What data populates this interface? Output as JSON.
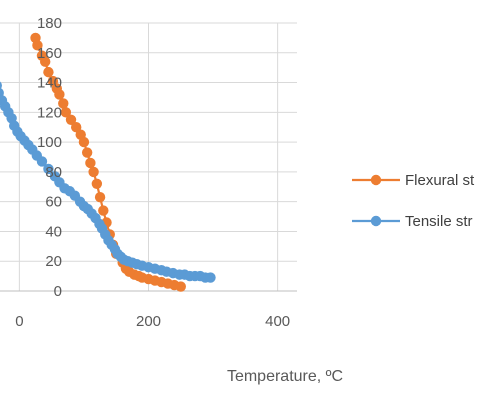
{
  "chart_data": {
    "type": "scatter",
    "xlabel": "Temperature, ºC",
    "ylabel": "",
    "xlim": [
      -30,
      430
    ],
    "ylim": [
      0,
      180
    ],
    "x_ticks": [
      0,
      200,
      400
    ],
    "y_ticks": [
      0,
      20,
      40,
      60,
      80,
      100,
      120,
      140,
      160,
      180
    ],
    "grid": true,
    "legend_position": "right",
    "series": [
      {
        "name": "Flexural st",
        "color": "#ED7D31",
        "points": [
          [
            25,
            170
          ],
          [
            28,
            165
          ],
          [
            35,
            158
          ],
          [
            40,
            154
          ],
          [
            45,
            147
          ],
          [
            52,
            141
          ],
          [
            58,
            136
          ],
          [
            62,
            132
          ],
          [
            68,
            126
          ],
          [
            72,
            120
          ],
          [
            80,
            115
          ],
          [
            88,
            110
          ],
          [
            95,
            105
          ],
          [
            100,
            100
          ],
          [
            105,
            93
          ],
          [
            110,
            86
          ],
          [
            115,
            80
          ],
          [
            120,
            72
          ],
          [
            125,
            63
          ],
          [
            130,
            54
          ],
          [
            135,
            46
          ],
          [
            140,
            38
          ],
          [
            145,
            31
          ],
          [
            150,
            25
          ],
          [
            160,
            19
          ],
          [
            165,
            15
          ],
          [
            170,
            13
          ],
          [
            178,
            11
          ],
          [
            185,
            10
          ],
          [
            190,
            9
          ],
          [
            200,
            8
          ],
          [
            210,
            7
          ],
          [
            220,
            6
          ],
          [
            230,
            5
          ],
          [
            240,
            4
          ],
          [
            250,
            3
          ]
        ]
      },
      {
        "name": "Tensile str",
        "color": "#5B9BD5",
        "points": [
          [
            -40,
            143
          ],
          [
            -35,
            138
          ],
          [
            -32,
            133
          ],
          [
            -27,
            128
          ],
          [
            -22,
            124
          ],
          [
            -17,
            120
          ],
          [
            -12,
            116
          ],
          [
            -8,
            111
          ],
          [
            -3,
            107
          ],
          [
            2,
            104
          ],
          [
            8,
            101
          ],
          [
            14,
            98
          ],
          [
            20,
            95
          ],
          [
            27,
            91
          ],
          [
            35,
            87
          ],
          [
            45,
            82
          ],
          [
            55,
            77
          ],
          [
            62,
            73
          ],
          [
            70,
            69
          ],
          [
            78,
            67
          ],
          [
            86,
            64
          ],
          [
            94,
            60
          ],
          [
            100,
            57
          ],
          [
            106,
            55
          ],
          [
            112,
            52
          ],
          [
            118,
            49
          ],
          [
            124,
            45
          ],
          [
            128,
            42
          ],
          [
            133,
            38
          ],
          [
            138,
            34
          ],
          [
            143,
            31
          ],
          [
            148,
            28
          ],
          [
            152,
            25
          ],
          [
            157,
            23
          ],
          [
            162,
            21
          ],
          [
            168,
            20
          ],
          [
            175,
            19
          ],
          [
            182,
            18
          ],
          [
            190,
            17
          ],
          [
            200,
            16
          ],
          [
            210,
            15
          ],
          [
            220,
            14
          ],
          [
            228,
            13
          ],
          [
            238,
            12
          ],
          [
            248,
            11
          ],
          [
            256,
            11
          ],
          [
            264,
            10
          ],
          [
            272,
            10
          ],
          [
            280,
            10
          ],
          [
            288,
            9
          ],
          [
            296,
            9
          ]
        ]
      }
    ]
  }
}
